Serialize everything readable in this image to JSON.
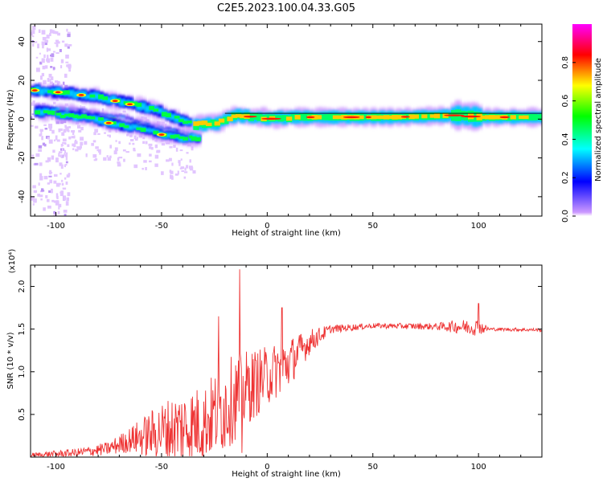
{
  "title": "C2E5.2023.100.04.33.G05",
  "chart_data": [
    {
      "type": "heatmap",
      "name": "spectrogram",
      "xlabel": "Height of straight line (km)",
      "ylabel": "Frequency (Hz)",
      "xlim": [
        -112,
        130
      ],
      "ylim": [
        -50,
        49
      ],
      "xticks": [
        -100,
        -50,
        0,
        50,
        100
      ],
      "yticks": [
        -40,
        -20,
        0,
        20,
        40
      ],
      "xtick_labels": [
        "-100",
        "-50",
        "0",
        "50",
        "100"
      ],
      "ytick_labels": [
        "-40",
        "-20",
        "0",
        "20",
        "40"
      ],
      "colorbar": {
        "label": "Normalized spectral amplitude",
        "range": [
          0,
          1
        ],
        "ticks": [
          0.0,
          0.2,
          0.4,
          0.6,
          0.8
        ],
        "tick_labels": [
          "0.0",
          "0.2",
          "0.4",
          "0.6",
          "0.8"
        ],
        "colors": [
          "#cc99ff",
          "#0000ff",
          "#00ffff",
          "#00ff00",
          "#ffff00",
          "#ff0000",
          "#ff00ff"
        ]
      },
      "tracks": [
        {
          "name": "upper-branch",
          "points": [
            [
              -112,
              15
            ],
            [
              -100,
              14
            ],
            [
              -85,
              12
            ],
            [
              -70,
              9
            ],
            [
              -55,
              5
            ],
            [
              -45,
              1
            ],
            [
              -38,
              -2
            ]
          ]
        },
        {
          "name": "middle-branch",
          "points": [
            [
              -110,
              4
            ],
            [
              -95,
              3
            ],
            [
              -80,
              0
            ],
            [
              -70,
              -1
            ],
            [
              -60,
              -4
            ],
            [
              -50,
              -7
            ],
            [
              -40,
              -9
            ],
            [
              -33,
              -10
            ]
          ]
        },
        {
          "name": "lower-branch",
          "points": [
            [
              -100,
              2
            ],
            [
              -85,
              1
            ],
            [
              -75,
              -2
            ],
            [
              -60,
              -5
            ],
            [
              -50,
              -8
            ],
            [
              -40,
              -10
            ]
          ]
        },
        {
          "name": "main-line",
          "points": [
            [
              -35,
              -3
            ],
            [
              -25,
              -2
            ],
            [
              -15,
              2
            ],
            [
              -5,
              1
            ],
            [
              0,
              0
            ],
            [
              10,
              1
            ],
            [
              30,
              1
            ],
            [
              60,
              1
            ],
            [
              90,
              2
            ],
            [
              100,
              1
            ],
            [
              130,
              1
            ]
          ]
        }
      ]
    },
    {
      "type": "line",
      "name": "snr",
      "xlabel": "Height of straight line (km)",
      "ylabel": "SNR (10 * v/v)",
      "yscale_label": "(x10⁴)",
      "xlim": [
        -112,
        130
      ],
      "ylim": [
        0,
        2.25
      ],
      "xticks": [
        -100,
        -50,
        0,
        50,
        100
      ],
      "yticks": [
        0.5,
        1.0,
        1.5,
        2.0
      ],
      "xtick_labels": [
        "-100",
        "-50",
        "0",
        "50",
        "100"
      ],
      "ytick_labels": [
        "0.5",
        "1.0",
        "1.5",
        "2.0"
      ],
      "color": "#ee3333",
      "envelope": [
        {
          "x": -112,
          "base": 0.02,
          "amp": 0.03
        },
        {
          "x": -90,
          "base": 0.05,
          "amp": 0.05
        },
        {
          "x": -75,
          "base": 0.1,
          "amp": 0.08
        },
        {
          "x": -65,
          "base": 0.2,
          "amp": 0.15
        },
        {
          "x": -50,
          "base": 0.3,
          "amp": 0.35
        },
        {
          "x": -40,
          "base": 0.35,
          "amp": 0.45
        },
        {
          "x": -30,
          "base": 0.4,
          "amp": 0.45
        },
        {
          "x": -20,
          "base": 0.6,
          "amp": 0.55
        },
        {
          "x": -10,
          "base": 0.8,
          "amp": 0.45
        },
        {
          "x": 0,
          "base": 0.95,
          "amp": 0.35
        },
        {
          "x": 10,
          "base": 1.1,
          "amp": 0.3
        },
        {
          "x": 20,
          "base": 1.35,
          "amp": 0.15
        },
        {
          "x": 30,
          "base": 1.5,
          "amp": 0.05
        },
        {
          "x": 50,
          "base": 1.54,
          "amp": 0.03
        },
        {
          "x": 80,
          "base": 1.53,
          "amp": 0.04
        },
        {
          "x": 90,
          "base": 1.53,
          "amp": 0.08
        },
        {
          "x": 100,
          "base": 1.52,
          "amp": 0.1
        },
        {
          "x": 105,
          "base": 1.5,
          "amp": 0.02
        },
        {
          "x": 130,
          "base": 1.49,
          "amp": 0.02
        }
      ],
      "spikes": [
        {
          "x": -23,
          "y": 1.65
        },
        {
          "x": -13,
          "y": 2.2
        },
        {
          "x": -12,
          "y": 0.05
        },
        {
          "x": 7,
          "y": 1.75
        },
        {
          "x": 100,
          "y": 0.88
        },
        {
          "x": 100,
          "y": 1.8
        }
      ]
    }
  ]
}
